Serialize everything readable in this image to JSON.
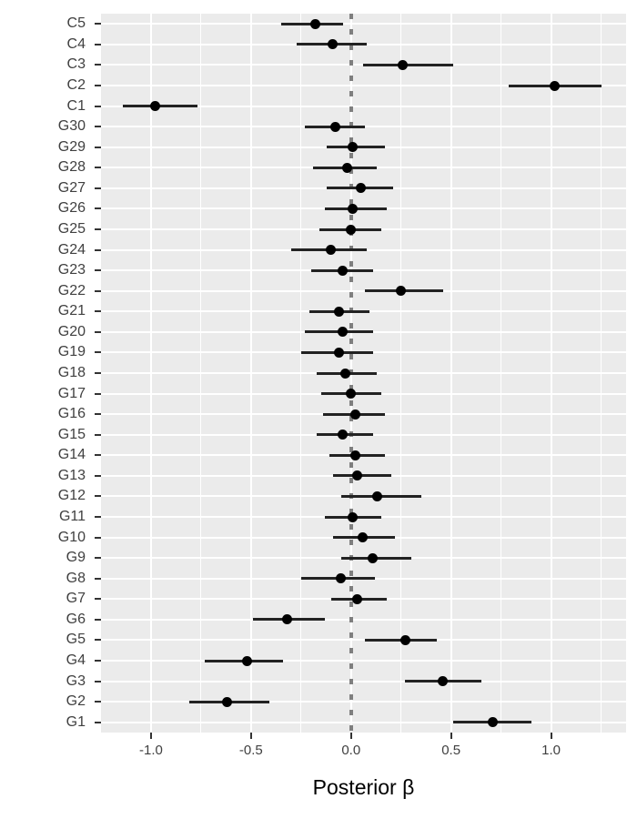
{
  "chart_data": {
    "type": "scatter",
    "subtype": "forest-pointrange",
    "title": "",
    "xlabel": "Posterior β",
    "ylabel": "",
    "xlim": [
      -1.25,
      1.375
    ],
    "x_ticks": [
      -1.0,
      -0.5,
      0.0,
      0.5,
      1.0
    ],
    "x_tick_labels": [
      "-1.0",
      "-0.5",
      "0.0",
      "0.5",
      "1.0"
    ],
    "x_minor_gridlines": [
      -0.75,
      -0.25,
      0.25,
      0.75,
      1.25
    ],
    "reference_line_x": 0,
    "grid": true,
    "legend": false,
    "panel_bg": "#EBEBEB",
    "grid_color": "#FFFFFF",
    "point_color": "#000000",
    "interval_color": "#222222",
    "ref_line_color": "#7F7F7F",
    "axis_text_color": "#404040",
    "rows": [
      {
        "label": "C5",
        "estimate": -0.18,
        "lower": -0.35,
        "upper": -0.04
      },
      {
        "label": "C4",
        "estimate": -0.09,
        "lower": -0.27,
        "upper": 0.08
      },
      {
        "label": "C3",
        "estimate": 0.26,
        "lower": 0.06,
        "upper": 0.51
      },
      {
        "label": "C2",
        "estimate": 1.02,
        "lower": 0.79,
        "upper": 1.25
      },
      {
        "label": "C1",
        "estimate": -0.98,
        "lower": -1.14,
        "upper": -0.77
      },
      {
        "label": "G30",
        "estimate": -0.08,
        "lower": -0.23,
        "upper": 0.07
      },
      {
        "label": "G29",
        "estimate": 0.01,
        "lower": -0.12,
        "upper": 0.17
      },
      {
        "label": "G28",
        "estimate": -0.02,
        "lower": -0.19,
        "upper": 0.13
      },
      {
        "label": "G27",
        "estimate": 0.05,
        "lower": -0.12,
        "upper": 0.21
      },
      {
        "label": "G26",
        "estimate": 0.01,
        "lower": -0.13,
        "upper": 0.18
      },
      {
        "label": "G25",
        "estimate": 0.0,
        "lower": -0.16,
        "upper": 0.15
      },
      {
        "label": "G24",
        "estimate": -0.1,
        "lower": -0.3,
        "upper": 0.08
      },
      {
        "label": "G23",
        "estimate": -0.04,
        "lower": -0.2,
        "upper": 0.11
      },
      {
        "label": "G22",
        "estimate": 0.25,
        "lower": 0.07,
        "upper": 0.46
      },
      {
        "label": "G21",
        "estimate": -0.06,
        "lower": -0.21,
        "upper": 0.09
      },
      {
        "label": "G20",
        "estimate": -0.04,
        "lower": -0.23,
        "upper": 0.11
      },
      {
        "label": "G19",
        "estimate": -0.06,
        "lower": -0.25,
        "upper": 0.11
      },
      {
        "label": "G18",
        "estimate": -0.03,
        "lower": -0.17,
        "upper": 0.13
      },
      {
        "label": "G17",
        "estimate": 0.0,
        "lower": -0.15,
        "upper": 0.15
      },
      {
        "label": "G16",
        "estimate": 0.02,
        "lower": -0.14,
        "upper": 0.17
      },
      {
        "label": "G15",
        "estimate": -0.04,
        "lower": -0.17,
        "upper": 0.11
      },
      {
        "label": "G14",
        "estimate": 0.02,
        "lower": -0.11,
        "upper": 0.17
      },
      {
        "label": "G13",
        "estimate": 0.03,
        "lower": -0.09,
        "upper": 0.2
      },
      {
        "label": "G12",
        "estimate": 0.13,
        "lower": -0.05,
        "upper": 0.35
      },
      {
        "label": "G11",
        "estimate": 0.01,
        "lower": -0.13,
        "upper": 0.15
      },
      {
        "label": "G10",
        "estimate": 0.06,
        "lower": -0.09,
        "upper": 0.22
      },
      {
        "label": "G9",
        "estimate": 0.11,
        "lower": -0.05,
        "upper": 0.3
      },
      {
        "label": "G8",
        "estimate": -0.05,
        "lower": -0.25,
        "upper": 0.12
      },
      {
        "label": "G7",
        "estimate": 0.03,
        "lower": -0.1,
        "upper": 0.18
      },
      {
        "label": "G6",
        "estimate": -0.32,
        "lower": -0.49,
        "upper": -0.13
      },
      {
        "label": "G5",
        "estimate": 0.27,
        "lower": 0.07,
        "upper": 0.43
      },
      {
        "label": "G4",
        "estimate": -0.52,
        "lower": -0.73,
        "upper": -0.34
      },
      {
        "label": "G3",
        "estimate": 0.46,
        "lower": 0.27,
        "upper": 0.65
      },
      {
        "label": "G2",
        "estimate": -0.62,
        "lower": -0.81,
        "upper": -0.41
      },
      {
        "label": "G1",
        "estimate": 0.71,
        "lower": 0.51,
        "upper": 0.9
      }
    ]
  }
}
